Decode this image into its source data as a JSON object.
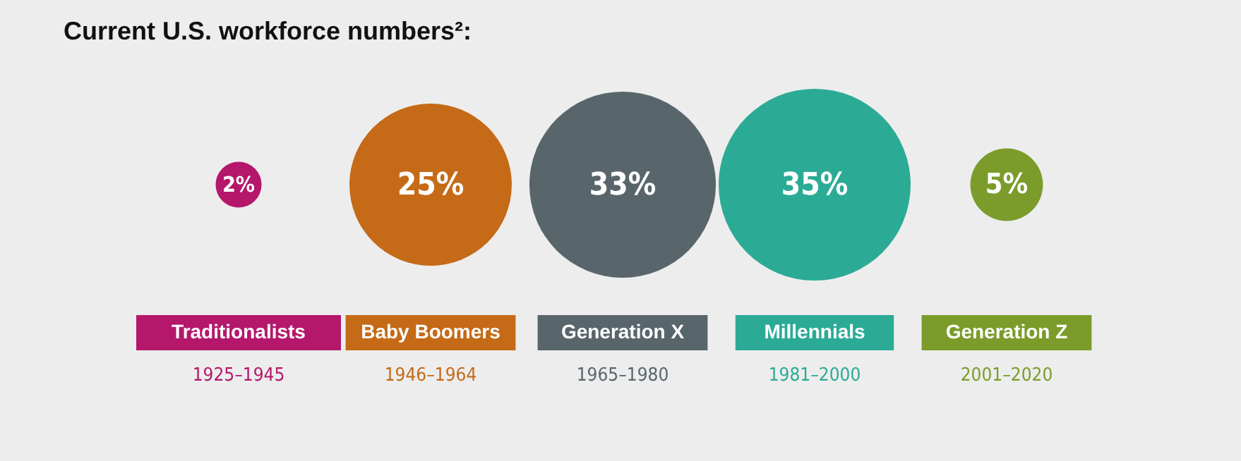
{
  "chart_data": {
    "type": "other",
    "title": "Current U.S. workforce numbers²:",
    "categories": [
      "Traditionalists",
      "Baby Boomers",
      "Generation X",
      "Millennials",
      "Generation Z"
    ],
    "values": [
      2,
      25,
      33,
      35,
      5
    ],
    "value_labels": [
      "2%",
      "25%",
      "33%",
      "35%",
      "5%"
    ],
    "colors": [
      "#b5176b",
      "#c56a16",
      "#58666c",
      "#2bab96",
      "#7b9c2a"
    ],
    "annotations": [
      {
        "text": "1925–1945",
        "x": "Traditionalists"
      },
      {
        "text": "1946–1964",
        "x": "Baby Boomers"
      },
      {
        "text": "1965–1980",
        "x": "Generation X"
      },
      {
        "text": "1981–2000",
        "x": "Millennials"
      },
      {
        "text": "2001–2020",
        "x": "Generation Z"
      }
    ]
  }
}
